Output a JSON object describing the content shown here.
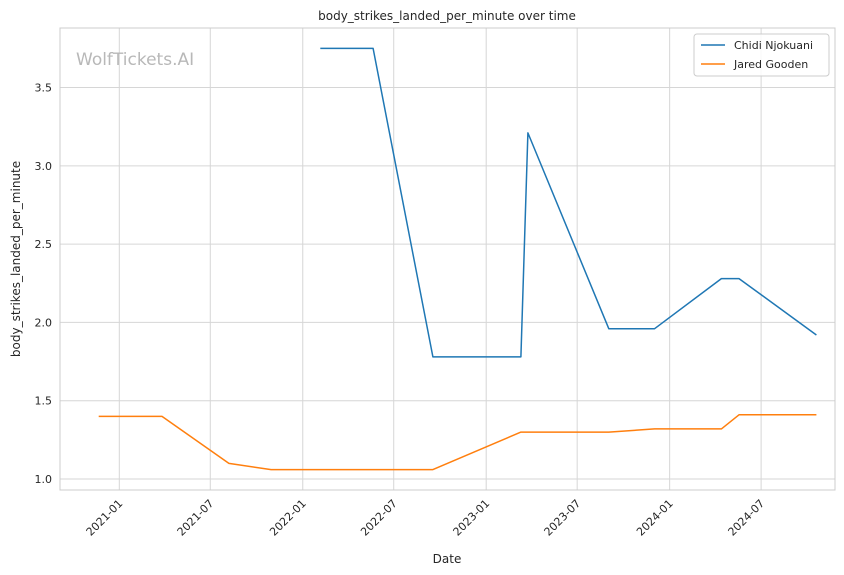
{
  "chart_data": {
    "type": "line",
    "title": "body_strikes_landed_per_minute over time",
    "xlabel": "Date",
    "ylabel": "body_strikes_landed_per_minute",
    "watermark": "WolfTickets.AI",
    "x_ticks": [
      "2021-01",
      "2021-07",
      "2022-01",
      "2022-07",
      "2023-01",
      "2023-07",
      "2024-01",
      "2024-07"
    ],
    "y_ticks": [
      "1.0",
      "1.5",
      "2.0",
      "2.5",
      "3.0",
      "3.5"
    ],
    "ylim": [
      0.93,
      3.88
    ],
    "xlim": [
      "2020-09-05",
      "2024-11-25"
    ],
    "grid": true,
    "legend_position": "top-right",
    "series": [
      {
        "name": "Chidi Njokuani",
        "color": "#1f77b4",
        "points": [
          {
            "x": "2022-02-05",
            "y": 3.75
          },
          {
            "x": "2022-05-21",
            "y": 3.75
          },
          {
            "x": "2022-09-17",
            "y": 1.78
          },
          {
            "x": "2023-03-11",
            "y": 1.78
          },
          {
            "x": "2023-03-25",
            "y": 3.21
          },
          {
            "x": "2023-09-02",
            "y": 1.96
          },
          {
            "x": "2023-12-02",
            "y": 1.96
          },
          {
            "x": "2024-04-13",
            "y": 2.28
          },
          {
            "x": "2024-05-18",
            "y": 2.28
          },
          {
            "x": "2024-10-19",
            "y": 1.92
          }
        ]
      },
      {
        "name": "Jared Gooden",
        "color": "#ff7f0e",
        "points": [
          {
            "x": "2020-11-21",
            "y": 1.4
          },
          {
            "x": "2021-03-27",
            "y": 1.4
          },
          {
            "x": "2021-08-07",
            "y": 1.1
          },
          {
            "x": "2021-10-30",
            "y": 1.06
          },
          {
            "x": "2022-09-17",
            "y": 1.06
          },
          {
            "x": "2023-03-11",
            "y": 1.3
          },
          {
            "x": "2023-09-02",
            "y": 1.3
          },
          {
            "x": "2023-12-02",
            "y": 1.32
          },
          {
            "x": "2024-04-13",
            "y": 1.32
          },
          {
            "x": "2024-05-18",
            "y": 1.41
          },
          {
            "x": "2024-10-19",
            "y": 1.41
          }
        ]
      }
    ]
  }
}
